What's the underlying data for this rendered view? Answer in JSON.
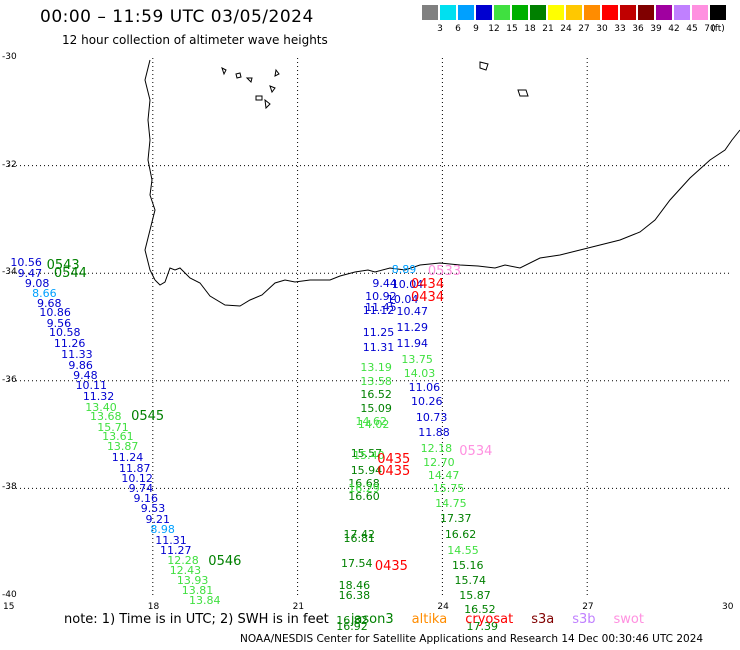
{
  "header": {
    "title": "00:00 – 11:59 UTC 03/05/2024",
    "subtitle": "12 hour collection of altimeter wave heights",
    "credit": "NOAA/NESDIS Center for Satellite Applications and Research   14 Dec 00:30:46 UTC 2024"
  },
  "legend": {
    "unit": "(ft)",
    "items": [
      {
        "color": "#808080",
        "label": "3"
      },
      {
        "color": "#00e0f0",
        "label": "6"
      },
      {
        "color": "#00a0ff",
        "label": "9"
      },
      {
        "color": "#0000d0",
        "label": "12"
      },
      {
        "color": "#40e040",
        "label": "15"
      },
      {
        "color": "#00b000",
        "label": "18"
      },
      {
        "color": "#008000",
        "label": "21"
      },
      {
        "color": "#ffff00",
        "label": "24"
      },
      {
        "color": "#ffc800",
        "label": "27"
      },
      {
        "color": "#ff8c00",
        "label": "30"
      },
      {
        "color": "#ff0000",
        "label": "33"
      },
      {
        "color": "#c00000",
        "label": "36"
      },
      {
        "color": "#800000",
        "label": "39"
      },
      {
        "color": "#a000a0",
        "label": "42"
      },
      {
        "color": "#c080ff",
        "label": "45"
      },
      {
        "color": "#ff90e0",
        "label": "70"
      },
      {
        "color": "#000000",
        "label": ""
      }
    ]
  },
  "axes": {
    "lon_ticks": [
      "15",
      "18",
      "21",
      "24",
      "27",
      "30"
    ],
    "lat_ticks": [
      "-30",
      "-32",
      "-34",
      "-36",
      "-38",
      "-40"
    ]
  },
  "notes": {
    "prefix": "note:  1) Time is in UTC;  2) SWH is in feet",
    "satellites": [
      {
        "name": "jason3",
        "color": "#008000"
      },
      {
        "name": "altika",
        "color": "#ff8c00"
      },
      {
        "name": "cryosat",
        "color": "#ff0000"
      },
      {
        "name": "s3a",
        "color": "#800000"
      },
      {
        "name": "s3b",
        "color": "#c080ff"
      },
      {
        "name": "swot",
        "color": "#ff90e0"
      }
    ]
  },
  "passes": [
    {
      "text": "0543",
      "color": "#008000",
      "lon": 15.8,
      "lat": -33.85
    },
    {
      "text": "0544",
      "color": "#008000",
      "lon": 15.95,
      "lat": -34.0
    },
    {
      "text": "0545",
      "color": "#008000",
      "lon": 17.55,
      "lat": -36.65
    },
    {
      "text": "0546",
      "color": "#008000",
      "lon": 19.15,
      "lat": -39.35
    },
    {
      "text": "0434",
      "color": "#ff0000",
      "lon": 23.35,
      "lat": -34.2
    },
    {
      "text": "0434",
      "color": "#ff0000",
      "lon": 23.35,
      "lat": -34.45
    },
    {
      "text": "0435",
      "color": "#ff0000",
      "lon": 22.65,
      "lat": -37.45
    },
    {
      "text": "0435",
      "color": "#ff0000",
      "lon": 22.65,
      "lat": -37.68
    },
    {
      "text": "0435",
      "color": "#ff0000",
      "lon": 22.6,
      "lat": -39.45
    },
    {
      "text": "0533",
      "color": "#ff90e0",
      "lon": 23.7,
      "lat": -33.95
    },
    {
      "text": "0534",
      "color": "#ff90e0",
      "lon": 24.35,
      "lat": -37.3
    }
  ],
  "readings": [
    {
      "v": "10.56",
      "c": "#0000d0",
      "lon": 15.05,
      "lat": -33.8
    },
    {
      "v": "9.47",
      "c": "#0000d0",
      "lon": 15.2,
      "lat": -34.0
    },
    {
      "v": "9.08",
      "c": "#0000d0",
      "lon": 15.35,
      "lat": -34.18
    },
    {
      "v": "8.66",
      "c": "#00a0ff",
      "lon": 15.5,
      "lat": -34.37
    },
    {
      "v": "9.68",
      "c": "#0000d0",
      "lon": 15.6,
      "lat": -34.55
    },
    {
      "v": "10.86",
      "c": "#0000d0",
      "lon": 15.65,
      "lat": -34.73
    },
    {
      "v": "9.56",
      "c": "#0000d0",
      "lon": 15.8,
      "lat": -34.92
    },
    {
      "v": "10.58",
      "c": "#0000d0",
      "lon": 15.85,
      "lat": -35.1
    },
    {
      "v": "11.26",
      "c": "#0000d0",
      "lon": 15.95,
      "lat": -35.3
    },
    {
      "v": "11.33",
      "c": "#0000d0",
      "lon": 16.1,
      "lat": -35.5
    },
    {
      "v": "9.86",
      "c": "#0000d0",
      "lon": 16.25,
      "lat": -35.7
    },
    {
      "v": "9.48",
      "c": "#0000d0",
      "lon": 16.35,
      "lat": -35.9
    },
    {
      "v": "10.11",
      "c": "#0000d0",
      "lon": 16.4,
      "lat": -36.08
    },
    {
      "v": "11.32",
      "c": "#0000d0",
      "lon": 16.55,
      "lat": -36.28
    },
    {
      "v": "13.40",
      "c": "#40e040",
      "lon": 16.6,
      "lat": -36.48
    },
    {
      "v": "13.68",
      "c": "#40e040",
      "lon": 16.7,
      "lat": -36.65
    },
    {
      "v": "15.71",
      "c": "#40e040",
      "lon": 16.85,
      "lat": -36.85
    },
    {
      "v": "13.61",
      "c": "#40e040",
      "lon": 16.95,
      "lat": -37.03
    },
    {
      "v": "13.87",
      "c": "#40e040",
      "lon": 17.05,
      "lat": -37.22
    },
    {
      "v": "11.24",
      "c": "#0000d0",
      "lon": 17.15,
      "lat": -37.42
    },
    {
      "v": "11.87",
      "c": "#0000d0",
      "lon": 17.3,
      "lat": -37.62
    },
    {
      "v": "10.12",
      "c": "#0000d0",
      "lon": 17.35,
      "lat": -37.81
    },
    {
      "v": "9.74",
      "c": "#0000d0",
      "lon": 17.5,
      "lat": -38.0
    },
    {
      "v": "9.16",
      "c": "#0000d0",
      "lon": 17.6,
      "lat": -38.18
    },
    {
      "v": "9.53",
      "c": "#0000d0",
      "lon": 17.75,
      "lat": -38.37
    },
    {
      "v": "9.21",
      "c": "#0000d0",
      "lon": 17.85,
      "lat": -38.56
    },
    {
      "v": "8.98",
      "c": "#00a0ff",
      "lon": 17.95,
      "lat": -38.75
    },
    {
      "v": "11.31",
      "c": "#0000d0",
      "lon": 18.05,
      "lat": -38.95
    },
    {
      "v": "11.27",
      "c": "#0000d0",
      "lon": 18.15,
      "lat": -39.15
    },
    {
      "v": "12.28",
      "c": "#40e040",
      "lon": 18.3,
      "lat": -39.33
    },
    {
      "v": "12.43",
      "c": "#40e040",
      "lon": 18.35,
      "lat": -39.52
    },
    {
      "v": "13.93",
      "c": "#40e040",
      "lon": 18.5,
      "lat": -39.7
    },
    {
      "v": "13.81",
      "c": "#40e040",
      "lon": 18.6,
      "lat": -39.88
    },
    {
      "v": "13.84",
      "c": "#40e040",
      "lon": 18.75,
      "lat": -40.08
    },
    {
      "v": "8.89",
      "c": "#00a0ff",
      "lon": 22.95,
      "lat": -33.93
    },
    {
      "v": "9.44",
      "c": "#0000d0",
      "lon": 22.55,
      "lat": -34.18
    },
    {
      "v": "10.04",
      "c": "#0000d0",
      "lon": 22.95,
      "lat": -34.2
    },
    {
      "v": "10.92",
      "c": "#0000d0",
      "lon": 22.4,
      "lat": -34.43
    },
    {
      "v": "10.04",
      "c": "#0000d0",
      "lon": 22.85,
      "lat": -34.48
    },
    {
      "v": "11.12",
      "c": "#0000d0",
      "lon": 22.35,
      "lat": -34.68
    },
    {
      "v": "10.47",
      "c": "#0000d0",
      "lon": 23.05,
      "lat": -34.7
    },
    {
      "v": "11.45",
      "c": "#0000d0",
      "lon": 22.4,
      "lat": -34.63
    },
    {
      "v": "11.25",
      "c": "#0000d0",
      "lon": 22.35,
      "lat": -35.1
    },
    {
      "v": "11.29",
      "c": "#0000d0",
      "lon": 23.05,
      "lat": -35.0
    },
    {
      "v": "11.31",
      "c": "#0000d0",
      "lon": 22.35,
      "lat": -35.38
    },
    {
      "v": "11.94",
      "c": "#0000d0",
      "lon": 23.05,
      "lat": -35.3
    },
    {
      "v": "13.75",
      "c": "#40e040",
      "lon": 23.15,
      "lat": -35.6
    },
    {
      "v": "13.19",
      "c": "#40e040",
      "lon": 22.3,
      "lat": -35.75
    },
    {
      "v": "14.03",
      "c": "#40e040",
      "lon": 23.2,
      "lat": -35.85
    },
    {
      "v": "13.58",
      "c": "#40e040",
      "lon": 22.3,
      "lat": -36.0
    },
    {
      "v": "11.06",
      "c": "#0000d0",
      "lon": 23.3,
      "lat": -36.12
    },
    {
      "v": "16.52",
      "c": "#008000",
      "lon": 22.3,
      "lat": -36.25
    },
    {
      "v": "10.26",
      "c": "#0000d0",
      "lon": 23.35,
      "lat": -36.38
    },
    {
      "v": "15.09",
      "c": "#008000",
      "lon": 22.3,
      "lat": -36.5
    },
    {
      "v": "10.73",
      "c": "#0000d0",
      "lon": 23.45,
      "lat": -36.67
    },
    {
      "v": "14.62",
      "c": "#40e040",
      "lon": 22.2,
      "lat": -36.75
    },
    {
      "v": "14.02",
      "c": "#40e040",
      "lon": 22.25,
      "lat": -36.8
    },
    {
      "v": "11.88",
      "c": "#0000d0",
      "lon": 23.5,
      "lat": -36.95
    },
    {
      "v": "12.18",
      "c": "#40e040",
      "lon": 23.55,
      "lat": -37.25
    },
    {
      "v": "15.57",
      "c": "#008000",
      "lon": 22.1,
      "lat": -37.35
    },
    {
      "v": "15.40",
      "c": "#40e040",
      "lon": 22.15,
      "lat": -37.38
    },
    {
      "v": "12.70",
      "c": "#40e040",
      "lon": 23.6,
      "lat": -37.5
    },
    {
      "v": "15.94",
      "c": "#008000",
      "lon": 22.1,
      "lat": -37.65
    },
    {
      "v": "14.47",
      "c": "#40e040",
      "lon": 23.7,
      "lat": -37.75
    },
    {
      "v": "16.68",
      "c": "#008000",
      "lon": 22.05,
      "lat": -37.9
    },
    {
      "v": "16.29",
      "c": "#40e040",
      "lon": 22.05,
      "lat": -38.0
    },
    {
      "v": "15.75",
      "c": "#40e040",
      "lon": 23.8,
      "lat": -38.0
    },
    {
      "v": "16.60",
      "c": "#008000",
      "lon": 22.05,
      "lat": -38.15
    },
    {
      "v": "14.75",
      "c": "#40e040",
      "lon": 23.85,
      "lat": -38.28
    },
    {
      "v": "17.37",
      "c": "#008000",
      "lon": 23.95,
      "lat": -38.55
    },
    {
      "v": "17.42",
      "c": "#008000",
      "lon": 21.95,
      "lat": -38.85
    },
    {
      "v": "16.81",
      "c": "#008000",
      "lon": 21.95,
      "lat": -38.93
    },
    {
      "v": "16.62",
      "c": "#008000",
      "lon": 24.05,
      "lat": -38.85
    },
    {
      "v": "14.55",
      "c": "#40e040",
      "lon": 24.1,
      "lat": -39.15
    },
    {
      "v": "17.54",
      "c": "#008000",
      "lon": 21.9,
      "lat": -39.38
    },
    {
      "v": "15.16",
      "c": "#008000",
      "lon": 24.2,
      "lat": -39.42
    },
    {
      "v": "15.74",
      "c": "#008000",
      "lon": 24.25,
      "lat": -39.7
    },
    {
      "v": "18.46",
      "c": "#008000",
      "lon": 21.85,
      "lat": -39.8
    },
    {
      "v": "16.38",
      "c": "#008000",
      "lon": 21.85,
      "lat": -39.98
    },
    {
      "v": "15.87",
      "c": "#008000",
      "lon": 24.35,
      "lat": -39.98
    },
    {
      "v": "16.52",
      "c": "#008000",
      "lon": 24.45,
      "lat": -40.25
    },
    {
      "v": "16.82",
      "c": "#008000",
      "lon": 21.8,
      "lat": -40.45
    },
    {
      "v": "16.92",
      "c": "#008000",
      "lon": 21.8,
      "lat": -40.55
    },
    {
      "v": "17.39",
      "c": "#008000",
      "lon": 24.5,
      "lat": -40.55
    }
  ]
}
